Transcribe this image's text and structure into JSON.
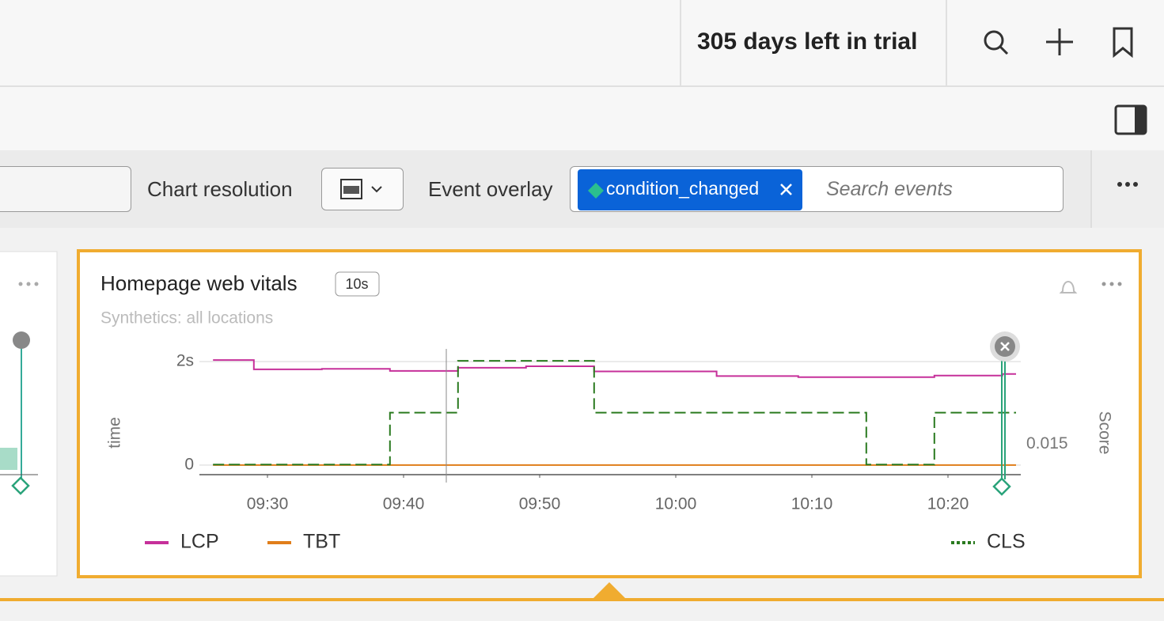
{
  "topbar": {
    "trial": "305 days left in trial"
  },
  "toolbar": {
    "chart_resolution_label": "Chart resolution",
    "event_overlay_label": "Event overlay",
    "event_chip": "condition_changed",
    "search_placeholder": "Search events"
  },
  "chart_data": {
    "type": "line",
    "title": "Homepage web vitals",
    "badge": "10s",
    "subtitle": "Synthetics: all locations",
    "ylabel": "time",
    "y2label": "Score",
    "x": [
      "09:26",
      "09:29",
      "09:34",
      "09:39",
      "09:44",
      "09:49",
      "09:54",
      "10:03",
      "10:09",
      "10:14",
      "10:19",
      "10:24",
      "10:25"
    ],
    "series": [
      {
        "name": "LCP",
        "color": "#c6309a",
        "values": [
          2.03,
          1.85,
          1.86,
          1.82,
          1.88,
          1.91,
          1.81,
          1.72,
          1.7,
          1.7,
          1.73,
          1.76,
          1.76
        ]
      },
      {
        "name": "TBT",
        "color": "#e07e1a",
        "values": [
          0,
          0,
          0,
          0,
          0,
          0,
          0,
          0,
          0,
          0,
          0,
          0,
          0
        ]
      },
      {
        "name": "CLS",
        "color": "#2a7a1f",
        "axis": "y2",
        "values": [
          0,
          0,
          0,
          0.038,
          0.076,
          0.076,
          0.038,
          0.038,
          0.038,
          0,
          0.038,
          0.038,
          0.038
        ]
      }
    ],
    "xlim": [
      "09:25",
      "10:25"
    ],
    "xticks": [
      "09:30",
      "09:40",
      "09:50",
      "10:00",
      "10:10",
      "10:20"
    ],
    "ylim": [
      -0.2,
      2.2
    ],
    "yticks": [
      {
        "value": 2,
        "label": "2s"
      },
      0
    ],
    "y2lim": [
      -0.008,
      0.083
    ],
    "y2ticks": [
      0.015
    ],
    "grid": true
  }
}
